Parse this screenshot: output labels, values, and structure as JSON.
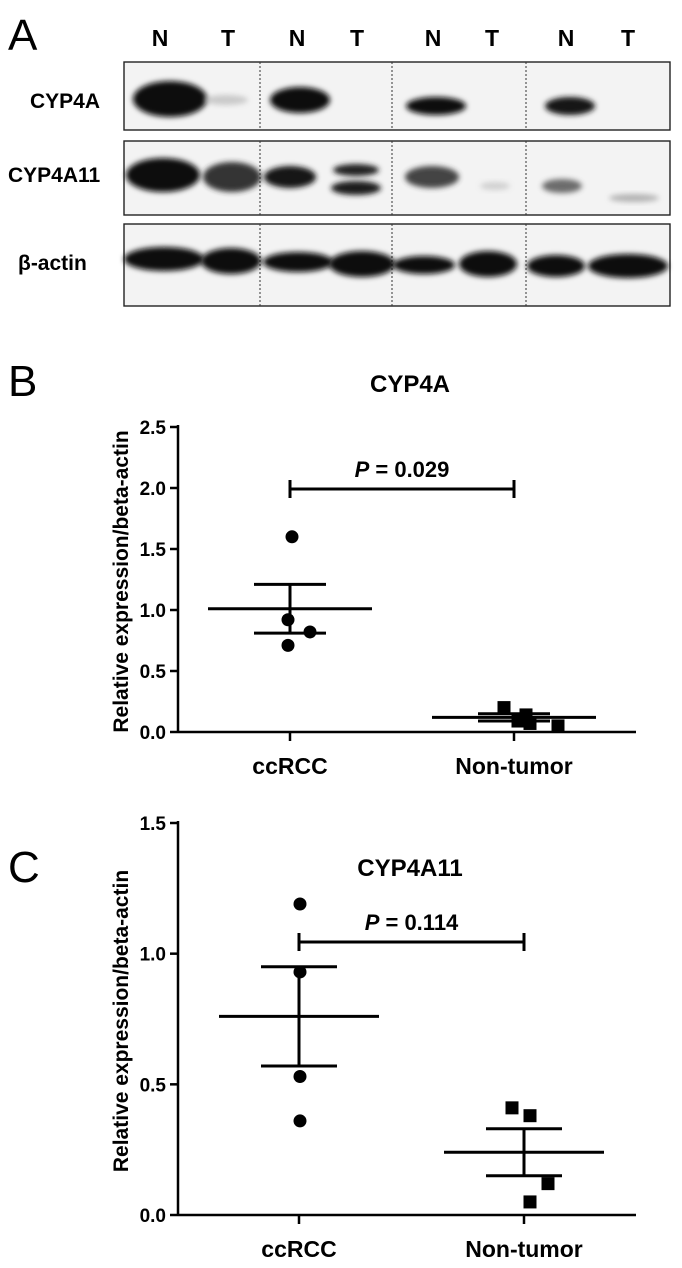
{
  "panel_a": {
    "letter": "A",
    "lane_labels": [
      "N",
      "T",
      "N",
      "T",
      "N",
      "T",
      "N",
      "T"
    ],
    "proteins": [
      "CYP4A",
      "CYP4A11",
      "β-actin"
    ]
  },
  "chart_data": [
    {
      "panel": "B",
      "type": "scatter",
      "title": "CYP4A",
      "xlabel": "",
      "ylabel": "Relative expression/beta-actin",
      "categories": [
        "ccRCC",
        "Non-tumor"
      ],
      "ylim": [
        0,
        2.5
      ],
      "yticks": [
        "0.0",
        "0.5",
        "1.0",
        "1.5",
        "2.0",
        "2.5"
      ],
      "marker_shapes": [
        "circle",
        "square"
      ],
      "series": [
        {
          "values": [
            1.6,
            0.92,
            0.82,
            0.71
          ],
          "mean": 1.01,
          "sem": 0.2
        },
        {
          "values": [
            0.2,
            0.14,
            0.09,
            0.07,
            0.05
          ],
          "mean": 0.12,
          "sem": 0.03
        }
      ],
      "annotation": {
        "p_prefix": "P",
        "p_value_text": " = 0.029"
      }
    },
    {
      "panel": "C",
      "type": "scatter",
      "title": "CYP4A11",
      "xlabel": "",
      "ylabel": "Relative expression/beta-actin",
      "categories": [
        "ccRCC",
        "Non-tumor"
      ],
      "ylim": [
        0,
        1.5
      ],
      "yticks": [
        "0.0",
        "0.5",
        "1.0",
        "1.5"
      ],
      "marker_shapes": [
        "circle",
        "square"
      ],
      "series": [
        {
          "values": [
            1.19,
            0.93,
            0.53,
            0.36
          ],
          "mean": 0.76,
          "sem": 0.19
        },
        {
          "values": [
            0.41,
            0.38,
            0.12,
            0.05
          ],
          "mean": 0.24,
          "sem": 0.09
        }
      ],
      "annotation": {
        "p_prefix": "P",
        "p_value_text": " = 0.114"
      }
    }
  ]
}
